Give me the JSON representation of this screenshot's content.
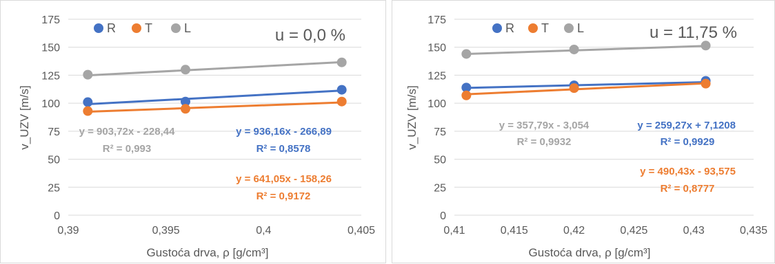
{
  "colors": {
    "R": "#4472c4",
    "T": "#ed7d31",
    "L": "#a5a5a5",
    "grid": "#d9d9d9",
    "text": "#595959"
  },
  "chart_data": [
    {
      "type": "scatter",
      "title": "",
      "moisture_label": "u = 0,0 %",
      "xlabel": "Gustoća drva, ρ [g/cm³]",
      "ylabel": "v_UZV [m/s]",
      "xlim": [
        0.39,
        0.405
      ],
      "ylim": [
        0,
        175
      ],
      "x_ticks": [
        "0,39",
        "0,395",
        "0,4",
        "0,405"
      ],
      "y_ticks": [
        "0",
        "25",
        "50",
        "75",
        "100",
        "125",
        "150",
        "175"
      ],
      "grid": "horizontal",
      "legend_position": "top-left",
      "series": [
        {
          "name": "R",
          "points": [
            [
              0.391,
              101
            ],
            [
              0.396,
              101.5
            ],
            [
              0.404,
              112
            ]
          ],
          "trendline": {
            "slope": 936.16,
            "intercept": -266.89
          },
          "equation": "y = 936,16x - 266,89",
          "r2": "R² = 0,8578"
        },
        {
          "name": "T",
          "points": [
            [
              0.391,
              93
            ],
            [
              0.396,
              95
            ],
            [
              0.404,
              101.5
            ]
          ],
          "trendline": {
            "slope": 641.05,
            "intercept": -158.26
          },
          "equation": "y = 641,05x - 158,26",
          "r2": "R² = 0,9172"
        },
        {
          "name": "L",
          "points": [
            [
              0.391,
              125.5
            ],
            [
              0.396,
              130
            ],
            [
              0.404,
              136.5
            ]
          ],
          "trendline": {
            "slope": 903.72,
            "intercept": -228.44
          },
          "equation": "y = 903,72x - 228,44",
          "r2": "R² = 0,993"
        }
      ]
    },
    {
      "type": "scatter",
      "title": "",
      "moisture_label": "u = 11,75 %",
      "xlabel": "Gustoća drva, ρ [g/cm³]",
      "ylabel": "v_UZV [m/s]",
      "xlim": [
        0.41,
        0.435
      ],
      "ylim": [
        0,
        175
      ],
      "x_ticks": [
        "0,41",
        "0,415",
        "0,42",
        "0,425",
        "0,43",
        "0,435"
      ],
      "y_ticks": [
        "0",
        "25",
        "50",
        "75",
        "100",
        "125",
        "150",
        "175"
      ],
      "grid": "horizontal",
      "legend_position": "top-left",
      "series": [
        {
          "name": "R",
          "points": [
            [
              0.411,
              114
            ],
            [
              0.42,
              116
            ],
            [
              0.431,
              120
            ]
          ],
          "trendline": {
            "slope": 259.27,
            "intercept": 7.1208
          },
          "equation": "y = 259,27x + 7,1208",
          "r2": "R² = 0,9929"
        },
        {
          "name": "T",
          "points": [
            [
              0.411,
              107
            ],
            [
              0.42,
              113.5
            ],
            [
              0.431,
              117.5
            ]
          ],
          "trendline": {
            "slope": 490.43,
            "intercept": -93.575
          },
          "equation": "y = 490,43x - 93,575",
          "r2": "R² = 0,8777"
        },
        {
          "name": "L",
          "points": [
            [
              0.411,
              144
            ],
            [
              0.42,
              148
            ],
            [
              0.431,
              151.5
            ]
          ],
          "trendline": {
            "slope": 357.79,
            "intercept": -3.054
          },
          "equation": "y = 357,79x - 3,054",
          "r2": "R² = 0,9932"
        }
      ]
    }
  ]
}
